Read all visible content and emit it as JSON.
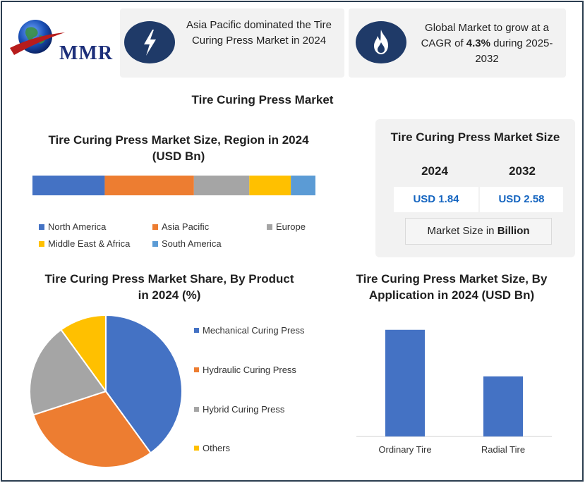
{
  "logo": {
    "text": "MMR"
  },
  "highlights": [
    {
      "icon": "lightning-icon",
      "text": "Asia Pacific dominated the Tire Curing Press Market in 2024"
    },
    {
      "icon": "flame-icon",
      "text_before": "Global Market to grow at a CAGR of ",
      "cagr": "4.3%",
      "text_after": " during 2025-2032"
    }
  ],
  "main_title": "Tire Curing Press Market",
  "colors": {
    "blue": "#4472c4",
    "orange": "#ed7d31",
    "gray": "#a5a5a5",
    "yellow": "#ffc000",
    "lightblue": "#5b9bd5",
    "navy": "#1f3a68",
    "usd": "#1565c0"
  },
  "market_size": {
    "title": "Tire Curing Press Market Size",
    "years": [
      "2024",
      "2032"
    ],
    "values": [
      "USD 1.84",
      "USD 2.58"
    ],
    "note_prefix": "Market Size in ",
    "note_bold": "Billion"
  },
  "chart_data": [
    {
      "type": "bar",
      "orientation": "horizontal-stacked",
      "title": "Tire Curing Press Market Size, Region in 2024 (USD Bn)",
      "legend_position": "bottom",
      "series": [
        {
          "name": "North America",
          "values": [
            0.47
          ],
          "color": "#4472c4"
        },
        {
          "name": "Asia Pacific",
          "values": [
            0.58
          ],
          "color": "#ed7d31"
        },
        {
          "name": "Europe",
          "values": [
            0.36
          ],
          "color": "#a5a5a5"
        },
        {
          "name": "Middle East & Africa",
          "values": [
            0.27
          ],
          "color": "#ffc000"
        },
        {
          "name": "South America",
          "values": [
            0.16
          ],
          "color": "#5b9bd5"
        }
      ]
    },
    {
      "type": "pie",
      "title": "Tire Curing Press Market Share, By Product in 2024 (%)",
      "legend_position": "right",
      "labels": [
        "Mechanical Curing Press",
        "Hydraulic Curing Press",
        "Hybrid Curing Press",
        "Others"
      ],
      "values": [
        40,
        30,
        20,
        10
      ],
      "colors": [
        "#4472c4",
        "#ed7d31",
        "#a5a5a5",
        "#ffc000"
      ]
    },
    {
      "type": "bar",
      "title": "Tire Curing Press Market Size, By Application in 2024 (USD Bn)",
      "categories": [
        "Ordinary Tire",
        "Radial Tire"
      ],
      "values": [
        1.1,
        0.62
      ],
      "ylim": [
        0,
        1.2
      ],
      "color": "#4472c4",
      "grid": false
    }
  ]
}
